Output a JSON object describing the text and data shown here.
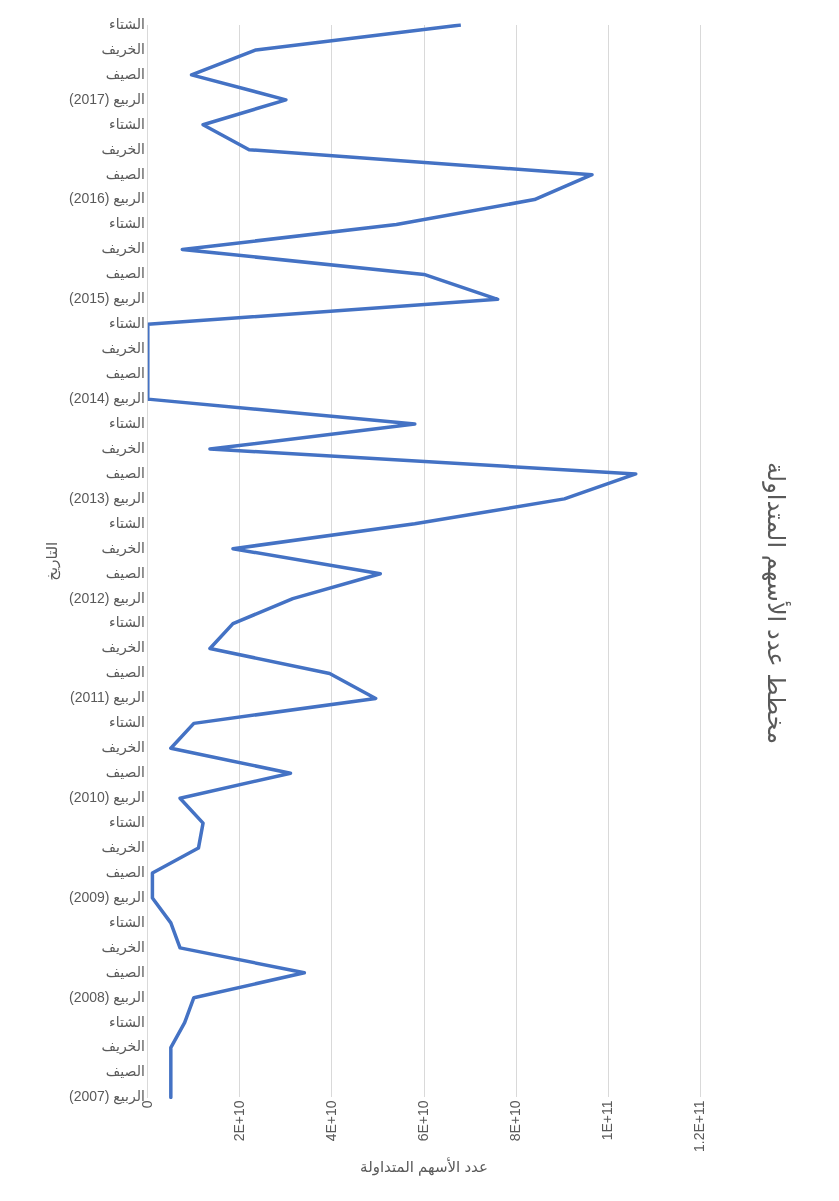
{
  "chart_data": {
    "type": "line",
    "orientation": "horizontal",
    "title": "مخطط عدد الأسهم المتداولة",
    "xlabel": "عدد الأسهم المتداولة",
    "ylabel": "التاريخ",
    "categories": [
      "الشتاء",
      "الخريف",
      "الصيف",
      "الربيع (2017)",
      "الشتاء",
      "الخريف",
      "الصيف",
      "الربيع (2016)",
      "الشتاء",
      "الخريف",
      "الصيف",
      "الربيع (2015)",
      "الشتاء",
      "الخريف",
      "الصيف",
      "الربيع (2014)",
      "الشتاء",
      "الخريف",
      "الصيف",
      "الربيع (2013)",
      "الشتاء",
      "الخريف",
      "الصيف",
      "الربيع (2012)",
      "الشتاء",
      "الخريف",
      "الصيف",
      "الربيع (2011)",
      "الشتاء",
      "الخريف",
      "الصيف",
      "الربيع (2010)",
      "الشتاء",
      "الخريف",
      "الصيف",
      "الربيع (2009)",
      "الشتاء",
      "الخريف",
      "الصيف",
      "الربيع (2008)",
      "الشتاء",
      "الخريف",
      "الصيف",
      "الربيع (2007)"
    ],
    "series": [
      {
        "color": "#4472c4",
        "values": [
          68000000000,
          23500000000,
          9500000000,
          30000000000,
          12000000000,
          22000000000,
          96500000000,
          84000000000,
          54000000000,
          7500000000,
          60000000000,
          76000000000,
          0,
          0,
          0,
          0,
          58000000000,
          13500000000,
          106000000000,
          90500000000,
          58000000000,
          18500000000,
          50500000000,
          31500000000,
          18500000000,
          13500000000,
          39500000000,
          49500000000,
          10000000000,
          5000000000,
          31000000000,
          7000000000,
          12000000000,
          11000000000,
          1000000000,
          1000000000,
          5000000000,
          7000000000,
          34000000000,
          10000000000,
          8000000000,
          5000000000,
          5000000000,
          5000000000
        ]
      }
    ],
    "xlim": [
      0,
      120000000000
    ],
    "xticks": [
      0,
      {
        "value": 20000000000,
        "label": "2E+10"
      },
      {
        "value": 40000000000,
        "label": "4E+10"
      },
      {
        "value": 60000000000,
        "label": "6E+10"
      },
      {
        "value": 80000000000,
        "label": "8E+10"
      },
      {
        "value": 100000000000,
        "label": "1E+11"
      },
      {
        "value": 120000000000,
        "label": "1.2E+11"
      }
    ],
    "grid": "x",
    "legend": false,
    "marker": "none",
    "line_style": "solid"
  }
}
